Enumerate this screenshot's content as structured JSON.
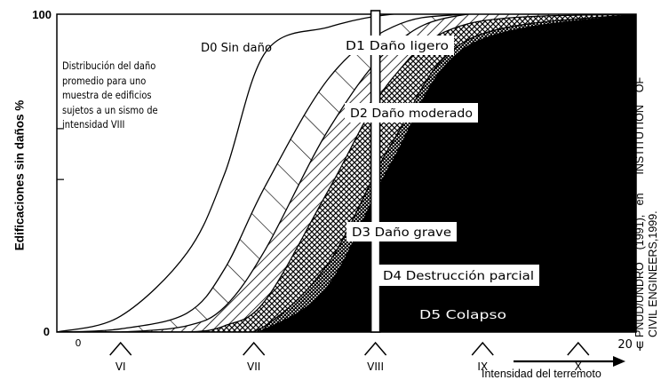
{
  "chart_data": {
    "type": "area",
    "title": "",
    "ylabel": "Edificaciones sin daños %",
    "xlabel": "Intensidad del terremoto",
    "ylim": [
      0,
      100
    ],
    "y_ticks": [
      "0",
      "100"
    ],
    "x_origin_label": "0",
    "x_end_label": "20 ψ",
    "categories": [
      "VI",
      "VII",
      "VIII",
      "IX",
      "X"
    ],
    "highlight_category": "VIII",
    "annotation": "Distribución del daño promedio para una muestra de edificios sujetos a un sismo de intensidad VIII",
    "annotation_lines": [
      "Distribución del daño",
      "promedio para uno",
      "muestra de edificios",
      "sujetos a un sismo de",
      "intensidad VIII"
    ],
    "source_lines": [
      "PNUD/UNDRO    (1991),   en      INSTITUTION    OF",
      "CIVIL ENGINEERS,1999."
    ],
    "series": [
      {
        "name": "D0 Sin daño",
        "pattern": "white",
        "upper_boundary": [
          0,
          5,
          25,
          50,
          88,
          96,
          100,
          100,
          100
        ]
      },
      {
        "name": "D1 Daño ligero",
        "pattern": "diagonal-coarse",
        "upper_boundary": [
          0,
          1,
          6,
          20,
          46,
          80,
          96,
          100,
          100
        ]
      },
      {
        "name": "D2 Daño moderado",
        "pattern": "diagonal-fine",
        "upper_boundary": [
          0,
          0,
          2,
          8,
          26,
          64,
          90,
          100,
          100
        ]
      },
      {
        "name": "D3 Daño grave",
        "pattern": "crosshatch",
        "upper_boundary": [
          0,
          0,
          0,
          2,
          10,
          45,
          80,
          97,
          100
        ]
      },
      {
        "name": "D4 Destrucción parcial",
        "pattern": "dots",
        "upper_boundary": [
          0,
          0,
          0,
          0,
          2,
          22,
          60,
          92,
          100
        ]
      },
      {
        "name": "D5 Colapso",
        "pattern": "solid-black",
        "upper_boundary": [
          0,
          0,
          0,
          0,
          1,
          15,
          54,
          90,
          100
        ]
      }
    ],
    "x_positions": [
      0,
      2.2,
      4.5,
      5.8,
      7.2,
      9.4,
      11.6,
      14.2,
      20
    ],
    "category_x": [
      2.2,
      6.8,
      11.0,
      14.7,
      18.0
    ],
    "colors": {
      "ink": "#000000",
      "paper": "#ffffff"
    }
  }
}
